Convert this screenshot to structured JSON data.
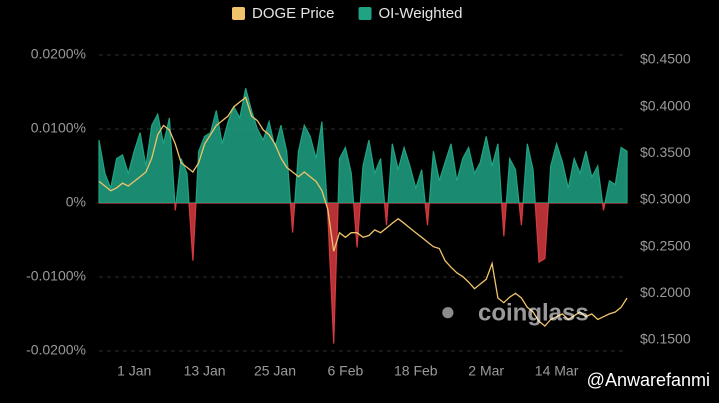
{
  "chart_data": {
    "type": "line-area",
    "categories": [
      null,
      null,
      null,
      null,
      null,
      null,
      "1 Jan",
      null,
      null,
      null,
      null,
      null,
      null,
      null,
      null,
      null,
      null,
      null,
      "13 Jan",
      null,
      null,
      null,
      null,
      null,
      null,
      null,
      null,
      null,
      null,
      null,
      "25 Jan",
      null,
      null,
      null,
      null,
      null,
      null,
      null,
      null,
      null,
      null,
      null,
      "6 Feb",
      null,
      null,
      null,
      null,
      null,
      null,
      null,
      null,
      null,
      null,
      null,
      "18 Feb",
      null,
      null,
      null,
      null,
      null,
      null,
      null,
      null,
      null,
      null,
      null,
      "2 Mar",
      null,
      null,
      null,
      null,
      null,
      null,
      null,
      null,
      null,
      null,
      null,
      "14 Mar",
      null,
      null,
      null,
      null,
      null,
      null,
      null,
      null,
      null,
      null,
      null,
      null
    ],
    "series": [
      {
        "name": "DOGE Price",
        "color": "#f0c36a",
        "axis": "y2",
        "values": [
          0.32,
          0.315,
          0.31,
          0.313,
          0.318,
          0.315,
          0.32,
          0.325,
          0.33,
          0.345,
          0.37,
          0.38,
          0.375,
          0.36,
          0.34,
          0.335,
          0.33,
          0.34,
          0.36,
          0.37,
          0.38,
          0.385,
          0.39,
          0.4,
          0.405,
          0.41,
          0.39,
          0.385,
          0.375,
          0.37,
          0.36,
          0.345,
          0.335,
          0.33,
          0.325,
          0.33,
          0.325,
          0.32,
          0.31,
          0.29,
          0.245,
          0.265,
          0.26,
          0.265,
          0.265,
          0.26,
          0.262,
          0.268,
          0.265,
          0.27,
          0.275,
          0.28,
          0.275,
          0.27,
          0.265,
          0.26,
          0.255,
          0.25,
          0.248,
          0.235,
          0.228,
          0.222,
          0.218,
          0.212,
          0.205,
          0.21,
          0.215,
          0.232,
          0.195,
          0.19,
          0.196,
          0.2,
          0.195,
          0.185,
          0.18,
          0.17,
          0.165,
          0.172,
          0.175,
          0.178,
          0.172,
          0.176,
          0.18,
          0.175,
          0.178,
          0.172,
          0.175,
          0.178,
          0.18,
          0.185,
          0.195
        ]
      },
      {
        "name": "OI-Weighted",
        "color": "#1fa383",
        "negative_color": "#d63a3f",
        "values": [
          0.0085,
          0.004,
          0.002,
          0.006,
          0.0065,
          0.004,
          0.007,
          0.0095,
          0.005,
          0.0105,
          0.012,
          0.008,
          0.0115,
          -0.001,
          0.006,
          0.004,
          -0.0078,
          0.007,
          0.009,
          0.0095,
          0.0125,
          0.008,
          0.011,
          0.013,
          0.0115,
          0.0155,
          0.0125,
          0.01,
          0.0085,
          0.011,
          0.0075,
          0.0105,
          0.007,
          -0.004,
          0.007,
          0.0105,
          0.009,
          0.006,
          0.011,
          -0.0015,
          -0.019,
          0.006,
          0.0075,
          0.004,
          -0.006,
          0.005,
          0.0085,
          0.004,
          0.006,
          -0.003,
          0.008,
          0.0045,
          0.0075,
          0.005,
          0.002,
          0.0045,
          -0.003,
          0.007,
          0.003,
          0.0055,
          0.008,
          0.003,
          0.006,
          0.0075,
          0.004,
          0.0055,
          0.009,
          0.005,
          0.008,
          -0.0045,
          0.006,
          0.0045,
          -0.003,
          0.008,
          0.0045,
          -0.008,
          -0.0075,
          0.005,
          0.008,
          0.0055,
          0.002,
          0.006,
          0.004,
          0.007,
          0.0035,
          0.005,
          -0.001,
          0.003,
          0.0025,
          0.0075,
          0.007
        ]
      }
    ],
    "ylim": [
      -0.02,
      0.02
    ],
    "yticks": [
      {
        "value": 0.02,
        "label": "0.0200%"
      },
      {
        "value": 0.01,
        "label": "0.0100%"
      },
      {
        "value": 0,
        "label": "0%"
      },
      {
        "value": -0.01,
        "label": "-0.0100%"
      },
      {
        "value": -0.02,
        "label": "-0.0200%"
      }
    ],
    "y2lim": [
      0.1382,
      0.4554
    ],
    "y2ticks": [
      {
        "value": 0.45,
        "label": "$0.4500"
      },
      {
        "value": 0.4,
        "label": "$0.4000"
      },
      {
        "value": 0.35,
        "label": "$0.3500"
      },
      {
        "value": 0.3,
        "label": "$0.3000"
      },
      {
        "value": 0.25,
        "label": "$0.2500"
      },
      {
        "value": 0.2,
        "label": "$0.2000"
      },
      {
        "value": 0.15,
        "label": "$0.1500"
      }
    ],
    "grid": true,
    "watermark": "coinglass",
    "credit": "@Anwarefanmi"
  }
}
